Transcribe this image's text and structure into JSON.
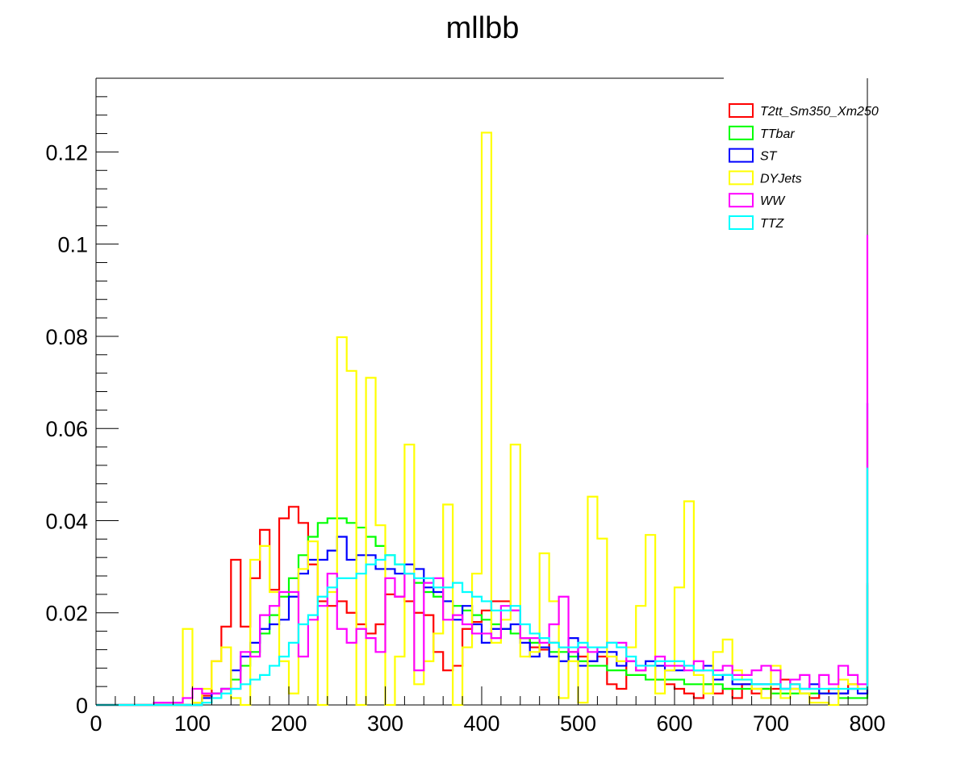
{
  "chart_data": {
    "type": "histogram",
    "title": "mllbb",
    "xlabel": "",
    "ylabel": "",
    "xlim": [
      0,
      800
    ],
    "ylim": [
      0,
      0.136
    ],
    "bin_width": 10,
    "x_ticks": [
      "0",
      "100",
      "200",
      "300",
      "400",
      "500",
      "600",
      "700",
      "800"
    ],
    "y_ticks": [
      "0",
      "0.02",
      "0.04",
      "0.06",
      "0.08",
      "0.1",
      "0.12"
    ],
    "grid": false,
    "legend_position": "top-right",
    "series": [
      {
        "name": "T2tt_Sm350_Xm250",
        "color": "#ff0000",
        "values": [
          0,
          0,
          0,
          0,
          0,
          0,
          0,
          0,
          0,
          0,
          0,
          0.002,
          0.0095,
          0.017,
          0.0315,
          0.017,
          0.0275,
          0.038,
          0.025,
          0.0405,
          0.043,
          0.0395,
          0.0305,
          0.0225,
          0.0215,
          0.0225,
          0.02,
          0.0175,
          0.0155,
          0.0175,
          0.024,
          0.0235,
          0.0225,
          0.02,
          0.0195,
          0.0115,
          0.0075,
          0.0085,
          0.0165,
          0.018,
          0.0205,
          0.0225,
          0.0225,
          0.0205,
          0.0145,
          0.0125,
          0.012,
          0.0135,
          0.0125,
          0.0115,
          0.0105,
          0.0095,
          0.0105,
          0.0045,
          0.0035,
          0.0095,
          0.0075,
          0.0085,
          0.0055,
          0.0045,
          0.0035,
          0.0025,
          0.0015,
          0.0045,
          0.0025,
          0.0035,
          0.0015,
          0.0045,
          0.0025,
          0.0035,
          0.0035,
          0.0055,
          0.0045,
          0.0025,
          0.0015,
          0.0025,
          0.0035,
          0.0025,
          0.0045,
          0.0035,
          0.0265
        ]
      },
      {
        "name": "TTbar",
        "color": "#00ff00",
        "values": [
          0,
          0,
          0,
          0,
          0,
          0,
          0,
          0,
          0,
          0,
          0,
          0.0015,
          0.0025,
          0.0035,
          0.0055,
          0.0085,
          0.0115,
          0.0155,
          0.0195,
          0.0235,
          0.0275,
          0.0325,
          0.0365,
          0.0395,
          0.0405,
          0.0405,
          0.0395,
          0.0385,
          0.0365,
          0.0345,
          0.0325,
          0.0305,
          0.0285,
          0.0265,
          0.0245,
          0.0235,
          0.0225,
          0.0215,
          0.0205,
          0.0195,
          0.0185,
          0.0175,
          0.0165,
          0.0155,
          0.0145,
          0.0135,
          0.0125,
          0.0115,
          0.0115,
          0.0105,
          0.0095,
          0.0085,
          0.0085,
          0.0075,
          0.0075,
          0.0065,
          0.0065,
          0.0055,
          0.0055,
          0.0055,
          0.0055,
          0.0045,
          0.0045,
          0.0045,
          0.0045,
          0.0035,
          0.0035,
          0.0035,
          0.0035,
          0.0035,
          0.0025,
          0.0025,
          0.0025,
          0.0025,
          0.0025,
          0.0025,
          0.0025,
          0.0015,
          0.0015,
          0.0015,
          0.026
        ]
      },
      {
        "name": "ST",
        "color": "#0000ff",
        "values": [
          0,
          0,
          0,
          0,
          0,
          0,
          0,
          0,
          0,
          0,
          0,
          0.0015,
          0.0025,
          0.0035,
          0.0075,
          0.0105,
          0.0135,
          0.0165,
          0.0175,
          0.0185,
          0.0235,
          0.0285,
          0.0315,
          0.0315,
          0.0335,
          0.0365,
          0.0315,
          0.0325,
          0.0325,
          0.0295,
          0.0295,
          0.0285,
          0.0305,
          0.0295,
          0.0255,
          0.0245,
          0.0225,
          0.0185,
          0.0215,
          0.0175,
          0.0135,
          0.0165,
          0.0165,
          0.0175,
          0.0135,
          0.0105,
          0.0125,
          0.0105,
          0.0095,
          0.0145,
          0.0085,
          0.0095,
          0.0115,
          0.0115,
          0.0085,
          0.0095,
          0.0085,
          0.0095,
          0.0085,
          0.0075,
          0.0075,
          0.0085,
          0.0075,
          0.0085,
          0.0055,
          0.0065,
          0.0045,
          0.0045,
          0.0045,
          0.0045,
          0.0045,
          0.0035,
          0.0035,
          0.0035,
          0.0045,
          0.0025,
          0.0025,
          0.0025,
          0.0035,
          0.0025,
          0.0655
        ]
      },
      {
        "name": "DYJets",
        "color": "#ffff00",
        "values": [
          0,
          0,
          0,
          0,
          0,
          0,
          0,
          0,
          0,
          0.0165,
          0.0005,
          0.0035,
          0.0095,
          0.0125,
          0.0015,
          0,
          0.0315,
          0.0345,
          0.0245,
          0.0095,
          0.0025,
          0.0295,
          0.0355,
          0,
          0.0245,
          0.0798,
          0.0725,
          0,
          0.071,
          0.039,
          0,
          0.0105,
          0.0565,
          0.0045,
          0.0095,
          0.0155,
          0.0435,
          0,
          0.0125,
          0.0285,
          0.1242,
          0.0135,
          0.0185,
          0.0565,
          0.0105,
          0.0115,
          0.0329,
          0.0225,
          0.0015,
          0.0095,
          0.0005,
          0.0452,
          0.0361,
          0.0105,
          0.0095,
          0.0125,
          0.0215,
          0.0369,
          0.0025,
          0.0075,
          0.0255,
          0.0442,
          0.0065,
          0.0025,
          0.0115,
          0.0142,
          0.0075,
          0.0055,
          0.0035,
          0.0015,
          0.0085,
          0.0015,
          0.0035,
          0.0025,
          0.0005,
          0.0005,
          0,
          0.0055,
          0.0045,
          0.0035,
          0.062
        ]
      },
      {
        "name": "WW",
        "color": "#ff00ff",
        "values": [
          0,
          0,
          0,
          0,
          0,
          0,
          0.0005,
          0.0005,
          0.0005,
          0.0015,
          0.0035,
          0.0025,
          0.0025,
          0.0035,
          0.0035,
          0.0115,
          0.0105,
          0.0195,
          0.0215,
          0.0245,
          0.0245,
          0.0105,
          0.0185,
          0.0215,
          0.0285,
          0.0165,
          0.0135,
          0.0165,
          0.0145,
          0.0115,
          0.0275,
          0.0235,
          0.0285,
          0.0075,
          0.0265,
          0.0275,
          0.0185,
          0.0195,
          0.0175,
          0.0155,
          0.0155,
          0.0145,
          0.0215,
          0.0205,
          0.0145,
          0.0145,
          0.0135,
          0.0175,
          0.0235,
          0.0115,
          0.0125,
          0.0115,
          0.0125,
          0.0135,
          0.0135,
          0.0095,
          0.0075,
          0.0085,
          0.0105,
          0.0085,
          0.0085,
          0.0075,
          0.0095,
          0.0075,
          0.0075,
          0.0085,
          0.0065,
          0.0065,
          0.0075,
          0.0085,
          0.0075,
          0.0035,
          0.0055,
          0.0065,
          0.0035,
          0.0065,
          0.0045,
          0.0085,
          0.0065,
          0.0045,
          0.102
        ]
      },
      {
        "name": "TTZ",
        "color": "#00ffff",
        "values": [
          0,
          0,
          0,
          0,
          0,
          0,
          0,
          0,
          0,
          0,
          0,
          0.0005,
          0.0015,
          0.0025,
          0.0035,
          0.0045,
          0.0055,
          0.0065,
          0.0085,
          0.0105,
          0.0135,
          0.0175,
          0.0195,
          0.0235,
          0.0255,
          0.0275,
          0.0275,
          0.0285,
          0.0305,
          0.0315,
          0.0325,
          0.0305,
          0.0285,
          0.0275,
          0.0275,
          0.0255,
          0.0255,
          0.0265,
          0.0245,
          0.0235,
          0.0225,
          0.0205,
          0.0205,
          0.0215,
          0.0175,
          0.0155,
          0.0145,
          0.0135,
          0.0125,
          0.0125,
          0.0135,
          0.0125,
          0.0125,
          0.0135,
          0.0125,
          0.0105,
          0.0085,
          0.0085,
          0.0095,
          0.0095,
          0.0095,
          0.0085,
          0.0075,
          0.0075,
          0.0065,
          0.0065,
          0.0055,
          0.0055,
          0.0045,
          0.0045,
          0.0045,
          0.0035,
          0.0045,
          0.0035,
          0.0035,
          0.0035,
          0.0035,
          0.0035,
          0.0035,
          0.0035,
          0.0515
        ]
      }
    ]
  }
}
